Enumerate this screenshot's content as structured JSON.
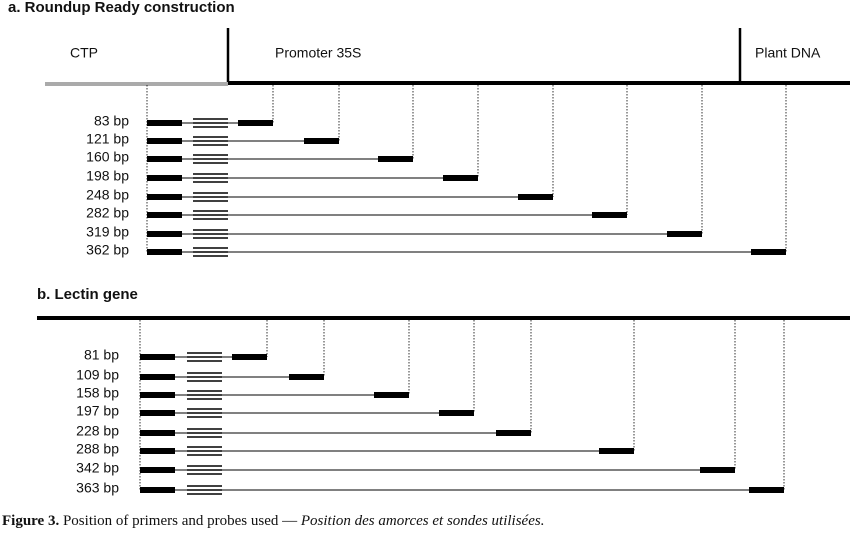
{
  "panels": [
    {
      "title": "a. Roundup Ready construction",
      "regions": [
        "CTP",
        "Promoter 35S",
        "Plant DNA"
      ],
      "amplicons": [
        "83 bp",
        "121 bp",
        "160 bp",
        "198 bp",
        "248 bp",
        "282 bp",
        "319 bp",
        "362 bp"
      ]
    },
    {
      "title": "b. Lectin gene",
      "amplicons": [
        "81 bp",
        "109 bp",
        "158 bp",
        "197 bp",
        "228 bp",
        "288 bp",
        "342 bp",
        "363 bp"
      ]
    }
  ],
  "caption": {
    "label": "Figure 3.",
    "text": "Position of primers and probes used —",
    "french": "Position des amorces et sondes utilisées."
  }
}
